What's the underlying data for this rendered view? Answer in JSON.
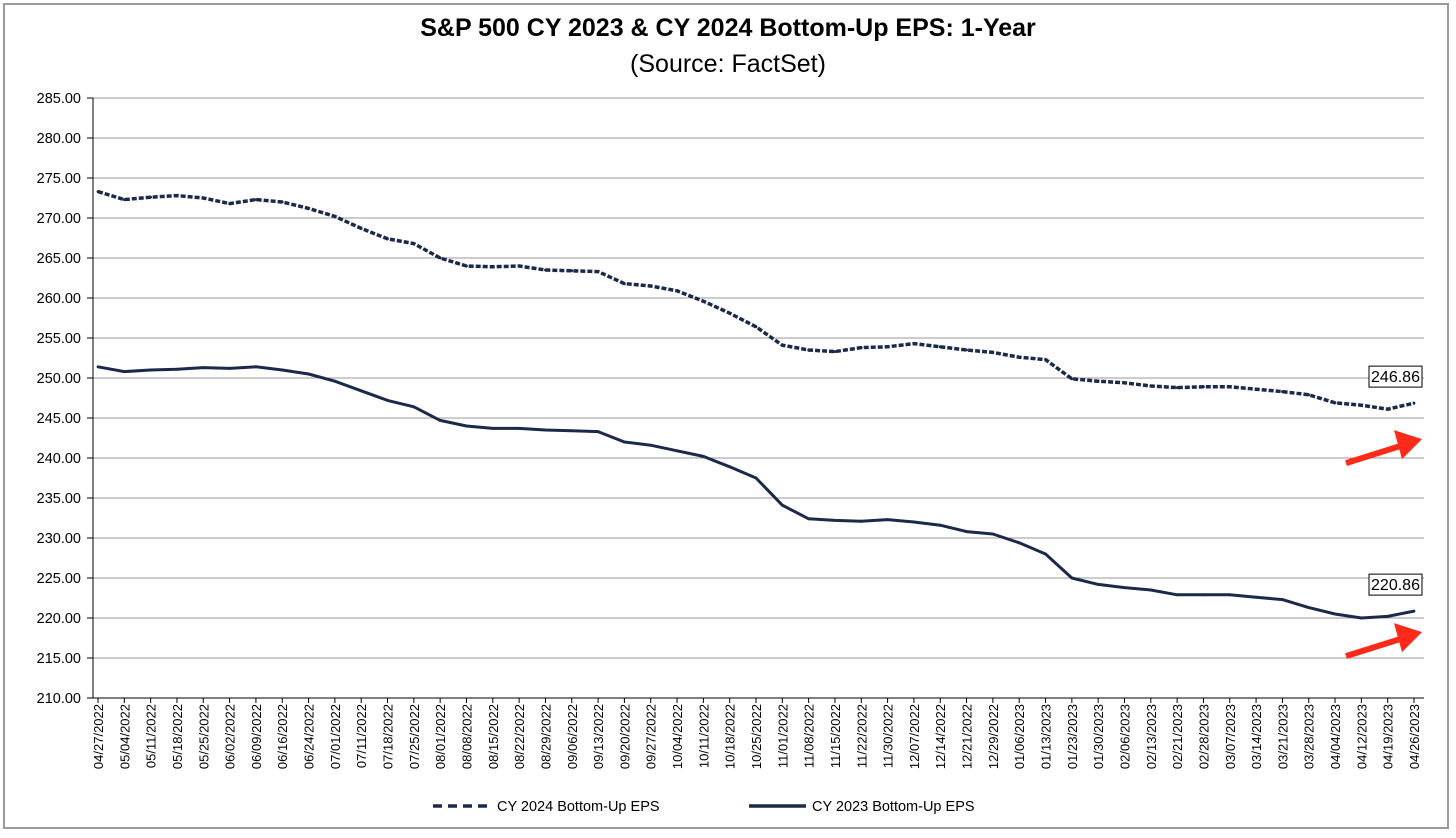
{
  "chart_data": {
    "type": "line",
    "title": "S&P 500 CY 2023 & CY 2024 Bottom-Up  EPS: 1-Year",
    "subtitle": "(Source: FactSet)",
    "xlabel": "",
    "ylabel": "",
    "ylim": [
      210,
      285
    ],
    "y_ticks": [
      "210.00",
      "215.00",
      "220.00",
      "225.00",
      "230.00",
      "235.00",
      "240.00",
      "245.00",
      "250.00",
      "255.00",
      "260.00",
      "265.00",
      "270.00",
      "275.00",
      "280.00",
      "285.00"
    ],
    "grid": "horizontal",
    "legend_position": "bottom",
    "colors": {
      "series": "#1b2a4a",
      "arrow": "#ff2a1a",
      "grid": "#9a9a9a"
    },
    "categories": [
      "04/27/2022",
      "05/04/2022",
      "05/11/2022",
      "05/18/2022",
      "05/25/2022",
      "06/02/2022",
      "06/09/2022",
      "06/16/2022",
      "06/24/2022",
      "07/01/2022",
      "07/11/2022",
      "07/18/2022",
      "07/25/2022",
      "08/01/2022",
      "08/08/2022",
      "08/15/2022",
      "08/22/2022",
      "08/29/2022",
      "09/06/2022",
      "09/13/2022",
      "09/20/2022",
      "09/27/2022",
      "10/04/2022",
      "10/11/2022",
      "10/18/2022",
      "10/25/2022",
      "11/01/2022",
      "11/08/2022",
      "11/15/2022",
      "11/22/2022",
      "11/30/2022",
      "12/07/2022",
      "12/14/2022",
      "12/21/2022",
      "12/29/2022",
      "01/06/2023",
      "01/13/2023",
      "01/23/2023",
      "01/30/2023",
      "02/06/2023",
      "02/13/2023",
      "02/21/2023",
      "02/28/2023",
      "03/07/2023",
      "03/14/2023",
      "03/21/2023",
      "03/28/2023",
      "04/04/2023",
      "04/12/2023",
      "04/19/2023",
      "04/26/2023"
    ],
    "series": [
      {
        "name": "CY 2024 Bottom-Up EPS",
        "style": "dashed",
        "values": [
          273.3,
          272.3,
          272.6,
          272.8,
          272.5,
          271.8,
          272.3,
          272.0,
          271.2,
          270.2,
          268.7,
          267.4,
          266.8,
          265.0,
          264.0,
          263.9,
          264.0,
          263.5,
          263.4,
          263.3,
          261.8,
          261.5,
          260.9,
          259.6,
          258.1,
          256.4,
          254.1,
          253.5,
          253.3,
          253.8,
          253.9,
          254.3,
          253.9,
          253.5,
          253.2,
          252.6,
          252.3,
          249.9,
          249.6,
          249.4,
          249.0,
          248.8,
          248.9,
          248.9,
          248.6,
          248.3,
          247.9,
          246.9,
          246.6,
          246.1,
          246.86
        ],
        "end_label": "246.86"
      },
      {
        "name": "CY 2023 Bottom-Up EPS",
        "style": "solid",
        "values": [
          251.4,
          250.8,
          251.0,
          251.1,
          251.3,
          251.2,
          251.4,
          251.0,
          250.5,
          249.6,
          248.4,
          247.2,
          246.4,
          244.7,
          244.0,
          243.7,
          243.7,
          243.5,
          243.4,
          243.3,
          242.0,
          241.6,
          240.9,
          240.2,
          238.9,
          237.5,
          234.1,
          232.4,
          232.2,
          232.1,
          232.3,
          232.0,
          231.6,
          230.8,
          230.5,
          229.4,
          228.0,
          225.0,
          224.2,
          223.8,
          223.5,
          222.9,
          222.9,
          222.9,
          222.6,
          222.3,
          221.3,
          220.5,
          220.0,
          220.2,
          220.86
        ],
        "end_label": "220.86"
      }
    ]
  }
}
